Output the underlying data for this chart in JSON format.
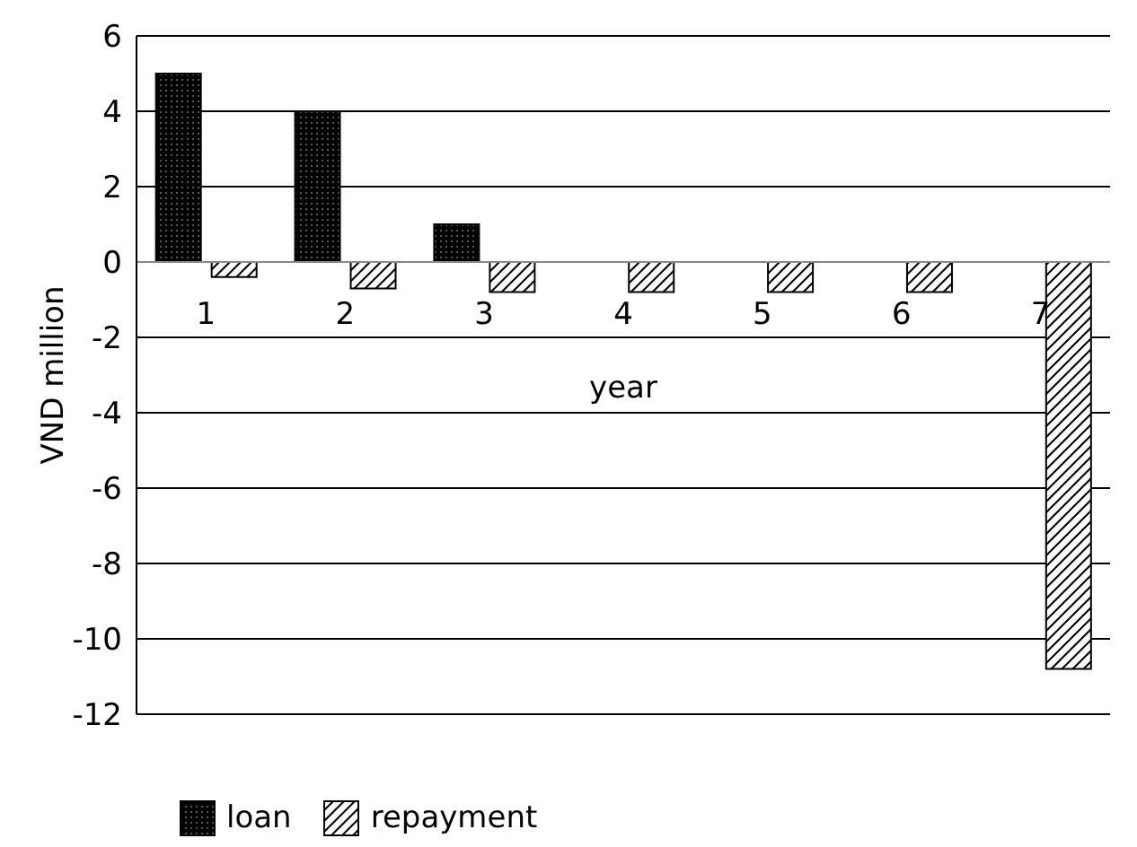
{
  "chart_data": {
    "type": "bar",
    "xlabel": "year",
    "ylabel": "VND million",
    "categories": [
      "1",
      "2",
      "3",
      "4",
      "5",
      "6",
      "7"
    ],
    "series": [
      {
        "name": "loan",
        "color": "#000000",
        "values": [
          5,
          4,
          1,
          0,
          0,
          0,
          0
        ]
      },
      {
        "name": "repayment",
        "color": "#000000",
        "values": [
          -0.4,
          -0.7,
          -0.8,
          -0.8,
          -0.8,
          -0.8,
          -10.8
        ]
      }
    ],
    "ylim": [
      -12,
      6
    ],
    "yticks": [
      -12,
      -10,
      -8,
      -6,
      -4,
      -2,
      0,
      2,
      4,
      6
    ],
    "grid": "y",
    "legend": "bottom left"
  }
}
